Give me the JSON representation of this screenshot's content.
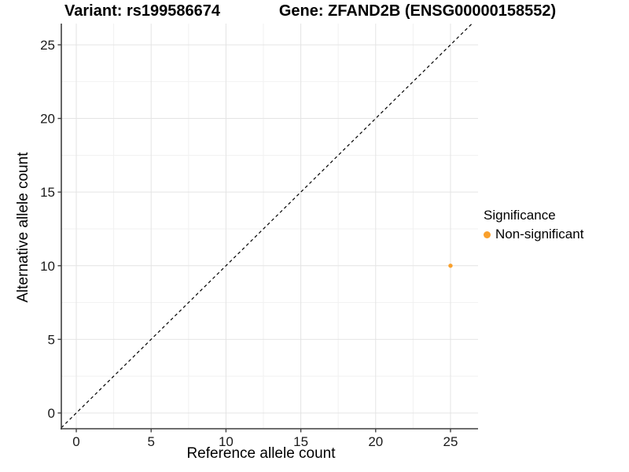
{
  "titles": {
    "left": "Variant: rs199586674",
    "right": "Gene: ZFAND2B (ENSG00000158552)"
  },
  "axes": {
    "x_label": "Reference allele count",
    "y_label": "Alternative allele count"
  },
  "legend": {
    "title": "Significance",
    "entries": [
      {
        "label": "Non-significant",
        "color": "#F9A02C"
      }
    ]
  },
  "style": {
    "major_grid_color": "#E4E4E4",
    "minor_grid_color": "#F1F1F1",
    "axis_color": "#3F3F3F",
    "tick_label_color": "#1A1A1A",
    "identity_line_color": "#000000",
    "point_color": "#F9A02C"
  },
  "chart_data": {
    "type": "scatter",
    "title": "Variant: rs199586674 | Gene: ZFAND2B (ENSG00000158552)",
    "xlabel": "Reference allele count",
    "ylabel": "Alternative allele count",
    "xlim": [
      -1.0,
      26.84
    ],
    "ylim": [
      -1.07,
      26.44
    ],
    "x_ticks": [
      0,
      5,
      10,
      15,
      20,
      25
    ],
    "y_ticks": [
      0,
      5,
      10,
      15,
      20,
      25
    ],
    "minor_tick_step": 2.5,
    "grid": true,
    "legend_position": "right",
    "legend_title": "Significance",
    "series": [
      {
        "name": "Non-significant",
        "color": "#F9A02C",
        "points": [
          {
            "x": 25,
            "y": 10
          }
        ]
      }
    ],
    "reference_line": {
      "equation": "y = x",
      "style": "dashed",
      "color": "#000000"
    }
  }
}
